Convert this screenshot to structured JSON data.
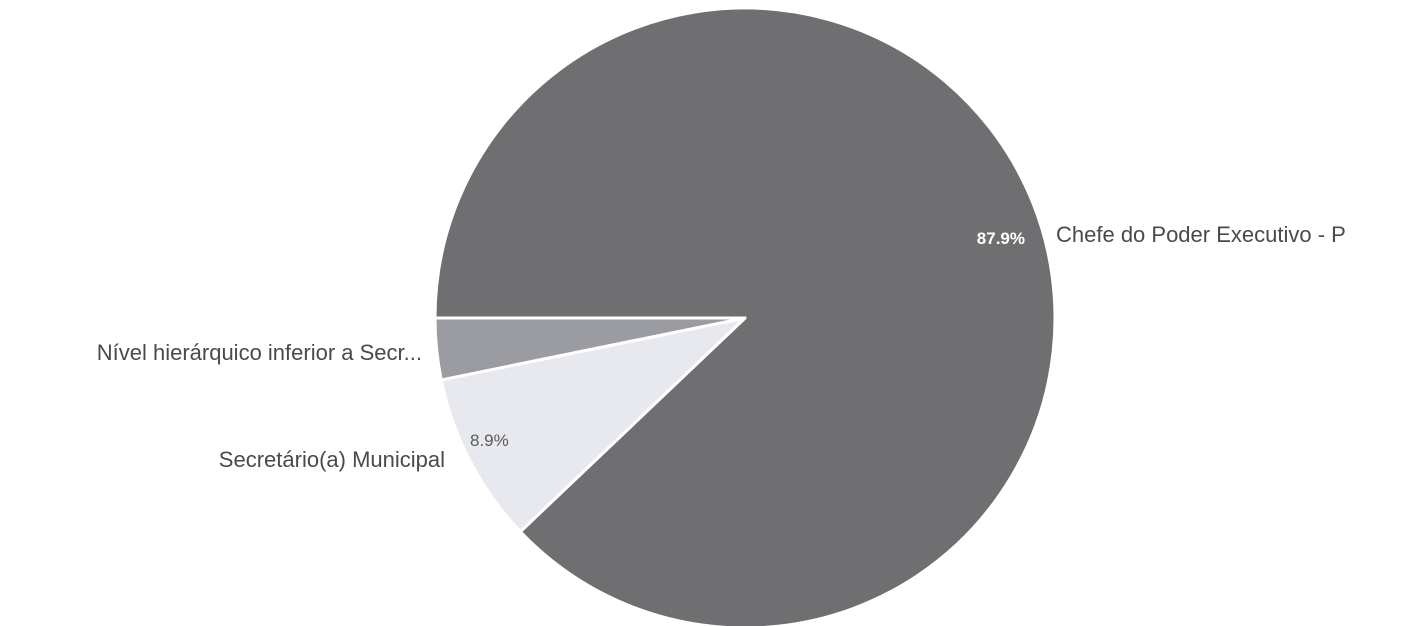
{
  "chart_data": {
    "type": "pie",
    "slices": [
      {
        "label": "Chefe do Poder Executivo - P",
        "value": 87.9,
        "value_label": "87.9%",
        "color": "#6f6f72",
        "value_label_color": "#ffffff"
      },
      {
        "label": "Secretário(a) Municipal",
        "value": 8.9,
        "value_label": "8.9%",
        "color": "#e7e9ef",
        "value_label_color": "#5a5a5a"
      },
      {
        "label": "Nível hierárquico inferior a Secr...",
        "value": 3.2,
        "value_label": "",
        "color": "#9a9ca1",
        "value_label_color": "#ffffff"
      }
    ],
    "legend": "none"
  }
}
